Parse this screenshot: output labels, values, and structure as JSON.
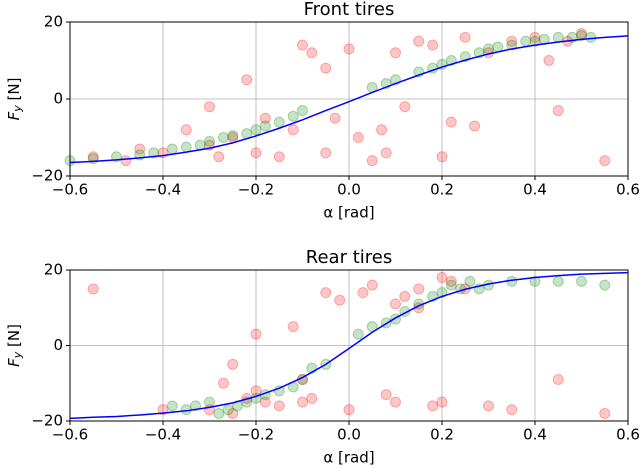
{
  "chart_data": [
    {
      "type": "scatter",
      "title": "Front tires",
      "xlabel": "α [rad]",
      "ylabel": [
        "F",
        "y",
        " [N]"
      ],
      "grid": true,
      "xlim": [
        -0.6,
        0.6
      ],
      "ylim": [
        -20,
        20
      ],
      "xticks": [
        {
          "value": -0.6,
          "label": "−0.6"
        },
        {
          "value": -0.4,
          "label": "−0.4"
        },
        {
          "value": -0.2,
          "label": "−0.2"
        },
        {
          "value": 0,
          "label": "0.0"
        },
        0.2,
        0.4,
        0.6
      ],
      "yticks": [
        {
          "value": -20,
          "label": "−20"
        },
        0,
        20
      ],
      "series": [
        {
          "color": "#ff0000",
          "x": [
            -0.55,
            -0.48,
            -0.45,
            -0.4,
            -0.35,
            -0.3,
            -0.3,
            -0.25,
            -0.22,
            -0.2,
            -0.15,
            -0.12,
            -0.1,
            -0.08,
            -0.05,
            -0.03,
            0,
            0.02,
            0.05,
            0.07,
            0.1,
            0.12,
            0.15,
            0.18,
            0.2,
            0.22,
            0.25,
            0.3,
            0.35,
            0.4,
            0.45,
            0.47,
            0.5,
            0.55,
            -0.18,
            -0.05,
            0.27,
            0.08,
            -0.28,
            0.43
          ],
          "values": [
            -15,
            -16,
            -13,
            -14,
            -8,
            -12,
            -2,
            -10,
            5,
            -14,
            -15,
            -8,
            14,
            12,
            -14,
            -5,
            13,
            -10,
            -16,
            -8,
            12,
            -2,
            15,
            14,
            -15,
            -6,
            16,
            12,
            15,
            16,
            -3,
            15,
            17,
            -16,
            -5,
            8,
            -7,
            -14,
            -15,
            10
          ]
        },
        {
          "color": "#008000",
          "x": [
            -0.6,
            -0.55,
            -0.5,
            -0.45,
            -0.42,
            -0.38,
            -0.35,
            -0.32,
            -0.3,
            -0.27,
            -0.25,
            -0.22,
            -0.2,
            -0.18,
            -0.15,
            -0.12,
            -0.1,
            0.05,
            0.08,
            0.1,
            0.15,
            0.18,
            0.2,
            0.22,
            0.25,
            0.28,
            0.3,
            0.32,
            0.35,
            0.38,
            0.4,
            0.42,
            0.45,
            0.48,
            0.5,
            0.52
          ],
          "values": [
            -16,
            -15.5,
            -15,
            -14.5,
            -14,
            -13,
            -12.5,
            -12,
            -11,
            -10,
            -9.5,
            -9,
            -8,
            -7,
            -6,
            -4.5,
            -3,
            3,
            4,
            5,
            7,
            8,
            9,
            10,
            11,
            12,
            13,
            13.5,
            14,
            15,
            15,
            15.5,
            16,
            16,
            16.5,
            16
          ]
        },
        {
          "type": "line",
          "color": "#0000ff",
          "x": [
            -0.6,
            -0.55,
            -0.5,
            -0.45,
            -0.4,
            -0.35,
            -0.3,
            -0.25,
            -0.2,
            -0.15,
            -0.1,
            -0.05,
            0,
            0.05,
            0.1,
            0.15,
            0.2,
            0.25,
            0.3,
            0.35,
            0.4,
            0.45,
            0.5,
            0.55,
            0.6
          ],
          "values": [
            -16.5,
            -16.2,
            -15.8,
            -15.3,
            -14.7,
            -13.8,
            -12.8,
            -11.4,
            -9.6,
            -7.6,
            -5.4,
            -3.0,
            -0.7,
            1.7,
            4.0,
            6.2,
            8.3,
            10.1,
            11.7,
            13.0,
            14.0,
            14.8,
            15.5,
            16.0,
            16.4
          ]
        }
      ]
    },
    {
      "type": "scatter",
      "title": "Rear tires",
      "xlabel": "α [rad]",
      "ylabel": [
        "F",
        "y",
        " [N]"
      ],
      "grid": true,
      "xlim": [
        -0.6,
        0.6
      ],
      "ylim": [
        -20,
        20
      ],
      "xticks": [
        {
          "value": -0.6,
          "label": "−0.6"
        },
        {
          "value": -0.4,
          "label": "−0.4"
        },
        {
          "value": -0.2,
          "label": "−0.2"
        },
        {
          "value": 0,
          "label": "0.0"
        },
        0.2,
        0.4,
        0.6
      ],
      "yticks": [
        {
          "value": -20,
          "label": "−20"
        },
        0,
        20
      ],
      "series": [
        {
          "color": "#ff0000",
          "x": [
            -0.55,
            -0.4,
            -0.3,
            -0.27,
            -0.25,
            -0.22,
            -0.2,
            -0.18,
            -0.15,
            -0.12,
            -0.1,
            -0.08,
            -0.05,
            -0.02,
            0,
            0.03,
            0.05,
            0.08,
            0.1,
            0.12,
            0.15,
            0.18,
            0.2,
            0.22,
            0.25,
            0.3,
            0.35,
            0.45,
            0.55,
            -0.2,
            -0.1,
            0.2,
            0.15,
            -0.25,
            0.1
          ],
          "values": [
            15,
            -17,
            -17,
            -10,
            -18,
            -14,
            -12,
            -15,
            -16,
            5,
            -9,
            -14,
            14,
            12,
            -17,
            14,
            16,
            -13,
            -15,
            13,
            15,
            -16,
            18,
            17,
            15,
            -16,
            -17,
            -9,
            -18,
            3,
            -15,
            -15,
            10,
            -5,
            11
          ]
        },
        {
          "color": "#008000",
          "x": [
            -0.38,
            -0.35,
            -0.33,
            -0.3,
            -0.28,
            -0.26,
            -0.24,
            -0.22,
            -0.2,
            -0.18,
            -0.15,
            -0.12,
            -0.1,
            -0.08,
            -0.05,
            0.02,
            0.05,
            0.08,
            0.1,
            0.12,
            0.15,
            0.18,
            0.2,
            0.22,
            0.24,
            0.26,
            0.28,
            0.3,
            0.35,
            0.4,
            0.45,
            0.5,
            0.55
          ],
          "values": [
            -16,
            -17,
            -16,
            -15,
            -18,
            -17,
            -16,
            -15,
            -14,
            -13,
            -12,
            -11,
            -9,
            -6,
            -5,
            3,
            5,
            6,
            7,
            9,
            11,
            13,
            14,
            16,
            15,
            17,
            15,
            16,
            17,
            17,
            17,
            17,
            16
          ]
        },
        {
          "type": "line",
          "color": "#0000ff",
          "x": [
            -0.6,
            -0.55,
            -0.5,
            -0.45,
            -0.4,
            -0.35,
            -0.3,
            -0.25,
            -0.2,
            -0.15,
            -0.1,
            -0.05,
            0,
            0.05,
            0.1,
            0.15,
            0.2,
            0.25,
            0.3,
            0.35,
            0.4,
            0.45,
            0.5,
            0.55,
            0.6
          ],
          "values": [
            -19.3,
            -19.0,
            -18.8,
            -18.4,
            -17.9,
            -17.3,
            -16.4,
            -15.2,
            -13.5,
            -11.3,
            -8.5,
            -5.0,
            -0.8,
            3.5,
            7.3,
            10.5,
            13.0,
            14.9,
            16.3,
            17.3,
            18.0,
            18.5,
            18.9,
            19.1,
            19.3
          ]
        }
      ]
    }
  ]
}
